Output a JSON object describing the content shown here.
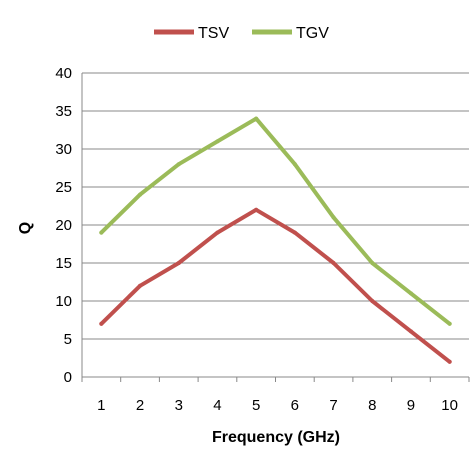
{
  "chart_data": {
    "type": "line",
    "categories": [
      "1",
      "2",
      "3",
      "4",
      "5",
      "6",
      "7",
      "8",
      "9",
      "10"
    ],
    "series": [
      {
        "name": "TSV",
        "color": "#c0504d",
        "values": [
          7,
          12,
          15,
          19,
          22,
          19,
          15,
          10,
          6,
          2
        ]
      },
      {
        "name": "TGV",
        "color": "#9bbb59",
        "values": [
          19,
          24,
          28,
          31,
          34,
          28,
          21,
          15,
          11,
          7
        ]
      }
    ],
    "xlabel": "Frequency (GHz)",
    "ylabel": "Q",
    "ylim": [
      0,
      40
    ],
    "yticks": [
      0,
      5,
      10,
      15,
      20,
      25,
      30,
      35,
      40
    ],
    "grid": "horizontal",
    "legend": "top"
  }
}
